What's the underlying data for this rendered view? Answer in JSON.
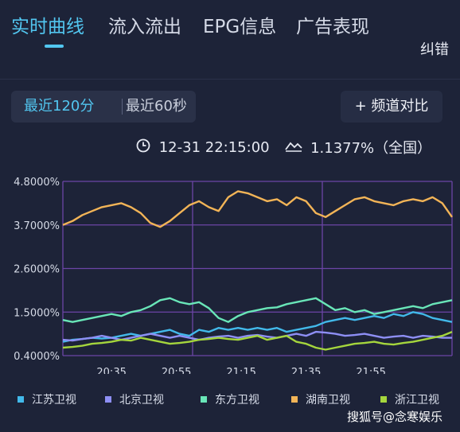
{
  "tabs": [
    {
      "label": "实时曲线",
      "active": true
    },
    {
      "label": "流入流出",
      "active": false
    },
    {
      "label": "EPG信息",
      "active": false
    },
    {
      "label": "广告表现",
      "active": false
    }
  ],
  "correction_label": "纠错",
  "range_options": [
    "最近120分",
    "最近60秒"
  ],
  "compare_button": {
    "icon": "plus-icon",
    "label": "+ 频道对比"
  },
  "status": {
    "time": "12-31 22:15:00",
    "value": "1.1377%（全国）",
    "time_icon": "clock-icon",
    "value_icon": "rating-icon"
  },
  "watermark": "搜狐号@念寒娱乐",
  "colors": {
    "background": "#1d2338",
    "accent": "#52c6f0",
    "grid": "#6c45a6"
  },
  "chart_data": {
    "type": "line",
    "ylim": [
      0.4,
      4.8
    ],
    "y_ticks": [
      "0.4000%",
      "1.5000%",
      "2.6000%",
      "3.7000%",
      "4.8000%"
    ],
    "y_tick_values": [
      0.4,
      1.5,
      2.6,
      3.7,
      4.8
    ],
    "x_ticks": [
      "20:35",
      "20:55",
      "21:15",
      "21:35",
      "21:55"
    ],
    "x_tick_minutes": [
      15,
      35,
      55,
      75,
      95
    ],
    "minute_range": [
      0,
      120
    ],
    "x": [
      0,
      3,
      6,
      9,
      12,
      15,
      18,
      21,
      24,
      27,
      30,
      33,
      36,
      39,
      42,
      45,
      48,
      51,
      54,
      57,
      60,
      63,
      66,
      69,
      72,
      75,
      78,
      81,
      84,
      87,
      90,
      93,
      96,
      99,
      102,
      105,
      108,
      111,
      114,
      117,
      120
    ],
    "series": [
      {
        "name": "江苏卫视",
        "color": "#42b9ea",
        "values": [
          0.75,
          0.8,
          0.82,
          0.85,
          0.83,
          0.85,
          0.9,
          0.95,
          0.9,
          0.95,
          1.0,
          1.05,
          0.95,
          0.9,
          1.05,
          1.0,
          1.1,
          1.05,
          1.1,
          1.05,
          1.1,
          1.05,
          1.1,
          1.0,
          1.05,
          1.1,
          1.15,
          1.25,
          1.3,
          1.35,
          1.3,
          1.35,
          1.4,
          1.35,
          1.45,
          1.4,
          1.5,
          1.45,
          1.35,
          1.3,
          1.25
        ]
      },
      {
        "name": "北京卫视",
        "color": "#8e8ff5",
        "values": [
          0.8,
          0.78,
          0.82,
          0.85,
          0.9,
          0.85,
          0.8,
          0.85,
          0.9,
          0.95,
          0.9,
          0.85,
          0.9,
          0.85,
          0.8,
          0.85,
          0.88,
          0.9,
          0.85,
          0.9,
          0.92,
          0.88,
          0.85,
          0.9,
          0.95,
          0.9,
          1.0,
          0.98,
          0.95,
          0.9,
          0.92,
          0.95,
          0.9,
          0.85,
          0.88,
          0.9,
          0.85,
          0.9,
          0.88,
          0.85,
          0.85
        ]
      },
      {
        "name": "东方卫视",
        "color": "#69e6b8",
        "values": [
          1.3,
          1.25,
          1.3,
          1.35,
          1.4,
          1.45,
          1.4,
          1.5,
          1.55,
          1.65,
          1.8,
          1.85,
          1.75,
          1.7,
          1.75,
          1.6,
          1.35,
          1.25,
          1.4,
          1.5,
          1.55,
          1.6,
          1.62,
          1.7,
          1.75,
          1.8,
          1.85,
          1.7,
          1.55,
          1.6,
          1.5,
          1.55,
          1.45,
          1.5,
          1.55,
          1.6,
          1.65,
          1.6,
          1.7,
          1.75,
          1.8
        ]
      },
      {
        "name": "湖南卫视",
        "color": "#f2b457",
        "values": [
          3.7,
          3.8,
          3.95,
          4.05,
          4.15,
          4.2,
          4.25,
          4.15,
          4.0,
          3.75,
          3.65,
          3.8,
          4.0,
          4.2,
          4.3,
          4.15,
          4.05,
          4.4,
          4.55,
          4.5,
          4.4,
          4.3,
          4.35,
          4.2,
          4.4,
          4.3,
          4.0,
          3.9,
          4.05,
          4.2,
          4.35,
          4.4,
          4.3,
          4.25,
          4.2,
          4.3,
          4.35,
          4.3,
          4.4,
          4.25,
          3.9
        ]
      },
      {
        "name": "浙江卫视",
        "color": "#a5d63d",
        "values": [
          0.6,
          0.62,
          0.65,
          0.7,
          0.72,
          0.75,
          0.8,
          0.78,
          0.85,
          0.8,
          0.75,
          0.7,
          0.72,
          0.75,
          0.8,
          0.82,
          0.85,
          0.82,
          0.8,
          0.85,
          0.9,
          0.8,
          0.85,
          0.9,
          0.75,
          0.7,
          0.6,
          0.55,
          0.6,
          0.65,
          0.7,
          0.72,
          0.75,
          0.7,
          0.68,
          0.72,
          0.75,
          0.8,
          0.85,
          0.9,
          1.0
        ]
      }
    ]
  }
}
